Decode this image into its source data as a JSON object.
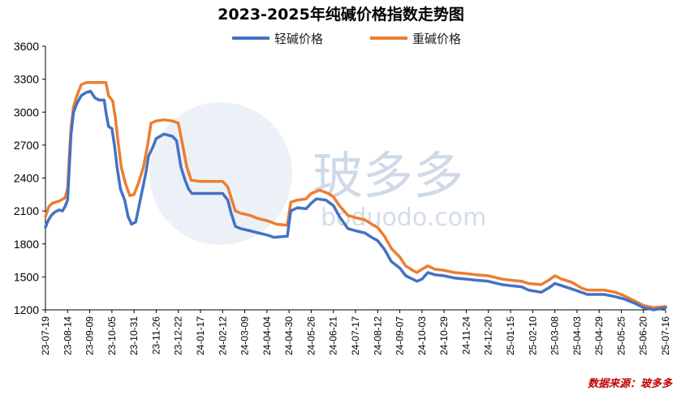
{
  "chart_data": {
    "type": "line",
    "title": "2023-2025年纯碱价格指数走势图",
    "ylim": [
      1200,
      3600
    ],
    "yticks": [
      1200,
      1500,
      1800,
      2100,
      2400,
      2700,
      3000,
      3300,
      3600
    ],
    "xlim": [
      "2023-07-19",
      "2025-07-16"
    ],
    "xtick_labels": [
      "23-07-19",
      "23-08-14",
      "23-09-09",
      "23-10-05",
      "23-10-31",
      "23-11-26",
      "23-12-22",
      "24-01-17",
      "24-02-12",
      "24-03-09",
      "24-04-04",
      "24-04-30",
      "24-05-26",
      "24-06-21",
      "24-07-17",
      "24-08-12",
      "24-09-07",
      "24-10-03",
      "24-10-29",
      "24-11-24",
      "24-12-20",
      "25-01-15",
      "25-02-10",
      "25-03-08",
      "25-04-03",
      "25-04-29",
      "25-05-25",
      "25-06-20",
      "25-07-16"
    ],
    "legend_position": "top",
    "grid": false,
    "series": [
      {
        "name": "轻碱价格",
        "color": "#4472c4",
        "points": [
          [
            "2023-07-19",
            1950
          ],
          [
            "2023-07-22",
            2010
          ],
          [
            "2023-07-26",
            2060
          ],
          [
            "2023-07-30",
            2090
          ],
          [
            "2023-08-04",
            2110
          ],
          [
            "2023-08-08",
            2100
          ],
          [
            "2023-08-11",
            2140
          ],
          [
            "2023-08-14",
            2200
          ],
          [
            "2023-08-16",
            2500
          ],
          [
            "2023-08-18",
            2800
          ],
          [
            "2023-08-21",
            3000
          ],
          [
            "2023-08-25",
            3080
          ],
          [
            "2023-08-30",
            3150
          ],
          [
            "2023-09-05",
            3180
          ],
          [
            "2023-09-10",
            3190
          ],
          [
            "2023-09-15",
            3130
          ],
          [
            "2023-09-20",
            3110
          ],
          [
            "2023-09-26",
            3110
          ],
          [
            "2023-09-28",
            3000
          ],
          [
            "2023-10-01",
            2870
          ],
          [
            "2023-10-05",
            2850
          ],
          [
            "2023-10-08",
            2700
          ],
          [
            "2023-10-11",
            2500
          ],
          [
            "2023-10-15",
            2300
          ],
          [
            "2023-10-20",
            2200
          ],
          [
            "2023-10-24",
            2050
          ],
          [
            "2023-10-28",
            1980
          ],
          [
            "2023-11-02",
            2000
          ],
          [
            "2023-11-06",
            2150
          ],
          [
            "2023-11-10",
            2300
          ],
          [
            "2023-11-14",
            2450
          ],
          [
            "2023-11-17",
            2600
          ],
          [
            "2023-11-22",
            2680
          ],
          [
            "2023-11-26",
            2760
          ],
          [
            "2023-12-05",
            2800
          ],
          [
            "2023-12-15",
            2780
          ],
          [
            "2023-12-20",
            2740
          ],
          [
            "2023-12-25",
            2500
          ],
          [
            "2023-12-30",
            2380
          ],
          [
            "2024-01-03",
            2300
          ],
          [
            "2024-01-07",
            2260
          ],
          [
            "2024-01-20",
            2260
          ],
          [
            "2024-02-12",
            2260
          ],
          [
            "2024-02-18",
            2200
          ],
          [
            "2024-02-22",
            2080
          ],
          [
            "2024-02-27",
            1960
          ],
          [
            "2024-03-04",
            1940
          ],
          [
            "2024-03-15",
            1920
          ],
          [
            "2024-03-25",
            1900
          ],
          [
            "2024-04-05",
            1880
          ],
          [
            "2024-04-12",
            1860
          ],
          [
            "2024-04-28",
            1870
          ],
          [
            "2024-05-02",
            2100
          ],
          [
            "2024-05-10",
            2130
          ],
          [
            "2024-05-20",
            2120
          ],
          [
            "2024-05-26",
            2170
          ],
          [
            "2024-06-01",
            2210
          ],
          [
            "2024-06-12",
            2200
          ],
          [
            "2024-06-21",
            2150
          ],
          [
            "2024-06-28",
            2050
          ],
          [
            "2024-07-08",
            1940
          ],
          [
            "2024-07-17",
            1920
          ],
          [
            "2024-07-28",
            1900
          ],
          [
            "2024-08-05",
            1860
          ],
          [
            "2024-08-12",
            1830
          ],
          [
            "2024-08-20",
            1750
          ],
          [
            "2024-08-28",
            1640
          ],
          [
            "2024-09-07",
            1580
          ],
          [
            "2024-09-14",
            1510
          ],
          [
            "2024-09-22",
            1480
          ],
          [
            "2024-09-27",
            1460
          ],
          [
            "2024-10-03",
            1480
          ],
          [
            "2024-10-10",
            1540
          ],
          [
            "2024-10-18",
            1520
          ],
          [
            "2024-10-29",
            1510
          ],
          [
            "2024-11-10",
            1490
          ],
          [
            "2024-11-24",
            1480
          ],
          [
            "2024-12-05",
            1470
          ],
          [
            "2024-12-20",
            1460
          ],
          [
            "2025-01-05",
            1430
          ],
          [
            "2025-01-15",
            1420
          ],
          [
            "2025-01-28",
            1410
          ],
          [
            "2025-02-05",
            1380
          ],
          [
            "2025-02-20",
            1360
          ],
          [
            "2025-03-01",
            1400
          ],
          [
            "2025-03-08",
            1440
          ],
          [
            "2025-03-16",
            1420
          ],
          [
            "2025-03-28",
            1390
          ],
          [
            "2025-04-08",
            1360
          ],
          [
            "2025-04-15",
            1340
          ],
          [
            "2025-04-22",
            1340
          ],
          [
            "2025-05-05",
            1340
          ],
          [
            "2025-05-18",
            1320
          ],
          [
            "2025-05-28",
            1300
          ],
          [
            "2025-06-10",
            1260
          ],
          [
            "2025-06-20",
            1220
          ],
          [
            "2025-07-02",
            1200
          ],
          [
            "2025-07-16",
            1220
          ]
        ]
      },
      {
        "name": "重碱价格",
        "color": "#ed7d31",
        "points": [
          [
            "2023-07-19",
            2050
          ],
          [
            "2023-07-23",
            2140
          ],
          [
            "2023-07-27",
            2170
          ],
          [
            "2023-08-04",
            2190
          ],
          [
            "2023-08-11",
            2220
          ],
          [
            "2023-08-14",
            2300
          ],
          [
            "2023-08-16",
            2600
          ],
          [
            "2023-08-18",
            2850
          ],
          [
            "2023-08-21",
            3050
          ],
          [
            "2023-08-25",
            3150
          ],
          [
            "2023-08-30",
            3250
          ],
          [
            "2023-09-05",
            3270
          ],
          [
            "2023-09-15",
            3270
          ],
          [
            "2023-09-28",
            3270
          ],
          [
            "2023-10-01",
            3150
          ],
          [
            "2023-10-06",
            3100
          ],
          [
            "2023-10-09",
            2950
          ],
          [
            "2023-10-12",
            2750
          ],
          [
            "2023-10-16",
            2500
          ],
          [
            "2023-10-21",
            2350
          ],
          [
            "2023-10-26",
            2240
          ],
          [
            "2023-10-31",
            2250
          ],
          [
            "2023-11-05",
            2350
          ],
          [
            "2023-11-11",
            2500
          ],
          [
            "2023-11-16",
            2700
          ],
          [
            "2023-11-20",
            2900
          ],
          [
            "2023-11-26",
            2920
          ],
          [
            "2023-12-05",
            2930
          ],
          [
            "2023-12-15",
            2920
          ],
          [
            "2023-12-22",
            2900
          ],
          [
            "2023-12-27",
            2700
          ],
          [
            "2024-01-01",
            2500
          ],
          [
            "2024-01-06",
            2380
          ],
          [
            "2024-01-17",
            2370
          ],
          [
            "2024-02-12",
            2370
          ],
          [
            "2024-02-18",
            2320
          ],
          [
            "2024-02-22",
            2220
          ],
          [
            "2024-02-27",
            2100
          ],
          [
            "2024-03-04",
            2080
          ],
          [
            "2024-03-15",
            2060
          ],
          [
            "2024-03-25",
            2030
          ],
          [
            "2024-04-05",
            2010
          ],
          [
            "2024-04-15",
            1980
          ],
          [
            "2024-04-28",
            1970
          ],
          [
            "2024-05-02",
            2180
          ],
          [
            "2024-05-10",
            2200
          ],
          [
            "2024-05-20",
            2210
          ],
          [
            "2024-05-26",
            2260
          ],
          [
            "2024-06-05",
            2290
          ],
          [
            "2024-06-15",
            2260
          ],
          [
            "2024-06-21",
            2230
          ],
          [
            "2024-06-28",
            2150
          ],
          [
            "2024-07-08",
            2060
          ],
          [
            "2024-07-17",
            2040
          ],
          [
            "2024-07-28",
            2020
          ],
          [
            "2024-08-05",
            1980
          ],
          [
            "2024-08-12",
            1950
          ],
          [
            "2024-08-20",
            1870
          ],
          [
            "2024-08-28",
            1760
          ],
          [
            "2024-09-07",
            1680
          ],
          [
            "2024-09-14",
            1600
          ],
          [
            "2024-09-22",
            1560
          ],
          [
            "2024-09-27",
            1540
          ],
          [
            "2024-10-03",
            1570
          ],
          [
            "2024-10-10",
            1600
          ],
          [
            "2024-10-18",
            1570
          ],
          [
            "2024-10-29",
            1560
          ],
          [
            "2024-11-10",
            1540
          ],
          [
            "2024-11-24",
            1530
          ],
          [
            "2024-12-05",
            1520
          ],
          [
            "2024-12-20",
            1510
          ],
          [
            "2025-01-05",
            1480
          ],
          [
            "2025-01-15",
            1470
          ],
          [
            "2025-01-28",
            1460
          ],
          [
            "2025-02-05",
            1440
          ],
          [
            "2025-02-20",
            1430
          ],
          [
            "2025-03-01",
            1470
          ],
          [
            "2025-03-08",
            1510
          ],
          [
            "2025-03-16",
            1480
          ],
          [
            "2025-03-28",
            1450
          ],
          [
            "2025-04-08",
            1400
          ],
          [
            "2025-04-15",
            1380
          ],
          [
            "2025-04-22",
            1380
          ],
          [
            "2025-05-05",
            1380
          ],
          [
            "2025-05-18",
            1360
          ],
          [
            "2025-05-28",
            1330
          ],
          [
            "2025-06-10",
            1280
          ],
          [
            "2025-06-20",
            1240
          ],
          [
            "2025-07-02",
            1220
          ],
          [
            "2025-07-16",
            1230
          ]
        ]
      }
    ]
  },
  "watermark": {
    "text_cn": "玻多多",
    "text_en": "boduodo.com"
  },
  "source_text": "数据来源：玻多多"
}
